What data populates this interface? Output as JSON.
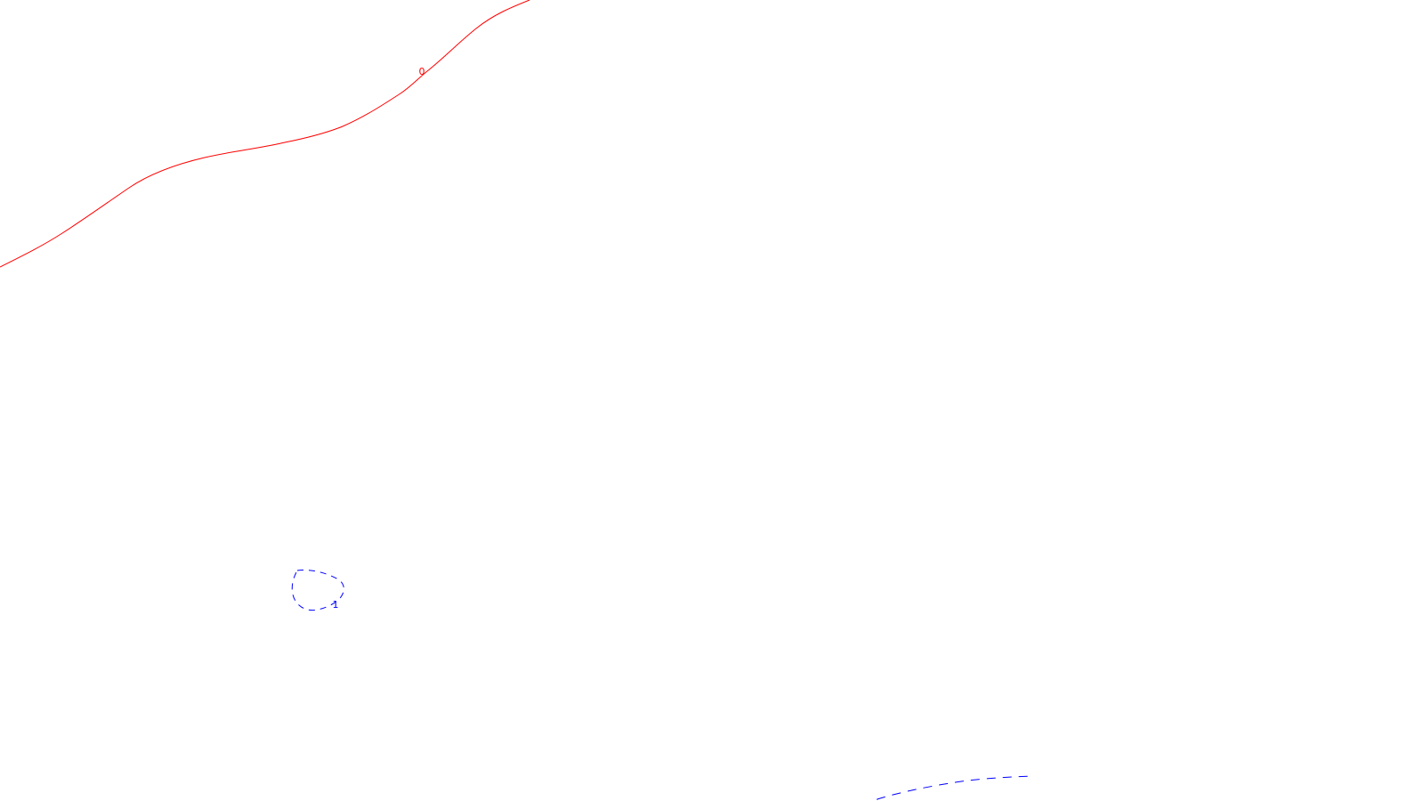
{
  "map": {
    "background_color": "#ffffff",
    "contours": [
      {
        "id": "zero",
        "label": "0",
        "style": "solid",
        "color": "#ff0000"
      },
      {
        "id": "one-loop",
        "label": "1",
        "style": "dashed",
        "color": "#0000ff"
      },
      {
        "id": "one-bottom",
        "label": "",
        "style": "dashed",
        "color": "#0000ff"
      }
    ]
  }
}
